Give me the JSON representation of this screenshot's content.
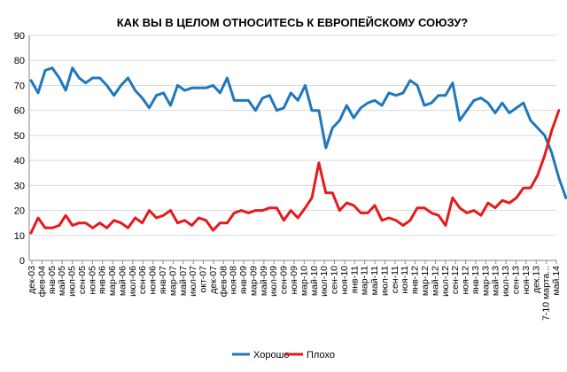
{
  "chart_data": {
    "type": "line",
    "title": "КАК ВЫ В ЦЕЛОМ ОТНОСИТЕСЬ К ЕВРОПЕЙСКОМУ СОЮЗУ?",
    "xlabel": "",
    "ylabel": "",
    "ylim": [
      0,
      90
    ],
    "yticks": [
      0,
      10,
      20,
      30,
      40,
      50,
      60,
      70,
      80,
      90
    ],
    "grid": true,
    "legend_position": "bottom",
    "tick_labels": [
      "дек-03",
      "фев-04",
      "янв-05",
      "май-05",
      "июл-05",
      "сен-05",
      "ноя-05",
      "янв-06",
      "мар-06",
      "май-06",
      "июл-06",
      "сен-06",
      "ноя-06",
      "янв-07",
      "мар-07",
      "май-07",
      "июл-07",
      "окт-07",
      "дек-07",
      "фев-08",
      "ноя-08",
      "янв-09",
      "мар-09",
      "май-09",
      "июл-09",
      "сен-09",
      "ноя-09",
      "мар-10",
      "май-10",
      "июл-10",
      "сен-10",
      "ноя-10",
      "янв-11",
      "мар-11",
      "май-11",
      "июл-11",
      "сен-11",
      "ноя-11",
      "янв-12",
      "мар-12",
      "май-12",
      "июл-12",
      "сен-12",
      "ноя-12",
      "янв-13",
      "мар-13",
      "май-13",
      "июл-13",
      "сен-13",
      "ноя-13",
      "дек.13",
      "7-10 марта...",
      "май.14"
    ],
    "tick_every": 2,
    "series": [
      {
        "name": "Хорошо",
        "color": "#1f77be",
        "values": [
          72,
          67,
          76,
          77,
          73,
          68,
          77,
          73,
          71,
          73,
          73,
          70,
          66,
          70,
          73,
          68,
          65,
          61,
          66,
          67,
          62,
          70,
          68,
          69,
          69,
          69,
          70,
          67,
          73,
          64,
          64,
          64,
          60,
          65,
          66,
          60,
          61,
          67,
          64,
          70,
          60,
          60,
          45,
          53,
          56,
          62,
          57,
          61,
          63,
          64,
          62,
          67,
          66,
          67,
          72,
          70,
          62,
          63,
          66,
          66,
          71,
          56,
          60,
          64,
          65,
          63,
          59,
          63,
          59,
          61,
          63,
          56,
          53,
          50,
          43,
          33,
          25
        ],
        "x_rel": [
          0.0,
          0.0147,
          0.0293,
          0.044,
          0.0586,
          0.072,
          0.0859,
          0.0996,
          0.1131,
          0.1277,
          0.1424,
          0.157,
          0.1717,
          0.1864,
          0.201,
          0.2157,
          0.2303,
          0.245,
          0.2597,
          0.2743,
          0.289,
          0.3037,
          0.3183,
          0.333,
          0.3476,
          0.3623,
          0.377,
          0.3916,
          0.4063,
          0.4209,
          0.4356,
          0.4503,
          0.4649,
          0.4796,
          0.4942,
          0.5089,
          0.5236,
          0.5382,
          0.5529,
          0.5678,
          0.5817,
          0.5961,
          0.6107,
          0.6244,
          0.639,
          0.6537,
          0.6683,
          0.683,
          0.6977,
          0.712,
          0.7267,
          0.7413,
          0.756,
          0.7707,
          0.7853,
          0.8,
          0.8146,
          0.8293,
          0.844,
          0.8586,
          0.8733,
          0.8879,
          0.9026,
          0.9173,
          0.9319,
          0.9466,
          0.9612,
          0.9759,
          0.9906,
          1.0053,
          1.0199,
          1.0346,
          1.0492,
          1.0639,
          1.0786,
          1.0932,
          1.1079
        ]
      },
      {
        "name": "Плохо",
        "color": "#e41a1c",
        "values": [
          11,
          17,
          13,
          13,
          14,
          18,
          14,
          15,
          15,
          13,
          15,
          13,
          16,
          15,
          13,
          17,
          15,
          20,
          17,
          18,
          20,
          15,
          16,
          14,
          17,
          16,
          12,
          15,
          15,
          19,
          20,
          19,
          20,
          20,
          21,
          21,
          16,
          20,
          17,
          21,
          25,
          39,
          27,
          27,
          20,
          23,
          22,
          19,
          19,
          22,
          16,
          17,
          16,
          14,
          16,
          21,
          21,
          19,
          18,
          14,
          25,
          21,
          19,
          20,
          18,
          23,
          21,
          24,
          23,
          25,
          29,
          29,
          34,
          42,
          52,
          60
        ],
        "x_rel": [
          0.0,
          0.0147,
          0.0293,
          0.044,
          0.0586,
          0.072,
          0.0859,
          0.0996,
          0.1131,
          0.1277,
          0.1424,
          0.157,
          0.1717,
          0.1864,
          0.201,
          0.2157,
          0.2303,
          0.245,
          0.2597,
          0.2743,
          0.289,
          0.3037,
          0.3183,
          0.333,
          0.3476,
          0.3623,
          0.377,
          0.3916,
          0.4063,
          0.4209,
          0.4356,
          0.4503,
          0.4649,
          0.4796,
          0.4942,
          0.5089,
          0.5236,
          0.5382,
          0.5529,
          0.5678,
          0.5817,
          0.5961,
          0.6107,
          0.6244,
          0.639,
          0.6537,
          0.6683,
          0.683,
          0.6977,
          0.712,
          0.7267,
          0.7413,
          0.756,
          0.7707,
          0.7853,
          0.8,
          0.8146,
          0.8293,
          0.844,
          0.8586,
          0.8733,
          0.8879,
          0.9026,
          0.9173,
          0.9319,
          0.9466,
          0.9612,
          0.9759,
          0.9906,
          1.0053,
          1.0199,
          1.0346,
          1.0492,
          1.0639,
          1.0786,
          1.0932
        ]
      }
    ]
  }
}
